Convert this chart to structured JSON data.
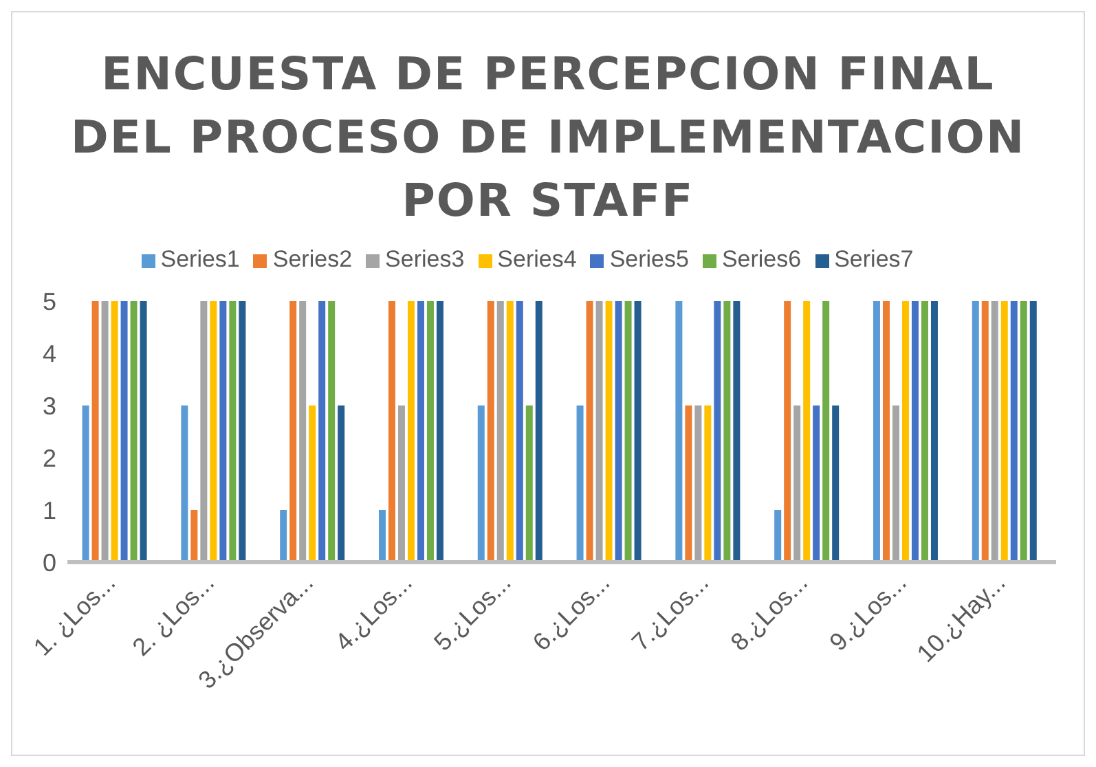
{
  "chart_data": {
    "type": "bar",
    "title": "ENCUESTA DE PERCEPCION FINAL DEL PROCESO DE IMPLEMENTACION POR STAFF",
    "categories": [
      "1. ¿Los...",
      "2. ¿Los...",
      "3.¿Observa...",
      "4.¿Los...",
      "5.¿Los...",
      "6.¿Los...",
      "7.¿Los...",
      "8.¿Los...",
      "9.¿Los...",
      "10.¿Hay..."
    ],
    "series": [
      {
        "name": "Series1",
        "color": "#5b9bd5",
        "values": [
          3,
          3,
          1,
          1,
          3,
          3,
          5,
          1,
          5,
          5
        ]
      },
      {
        "name": "Series2",
        "color": "#ed7d31",
        "values": [
          5,
          1,
          5,
          5,
          5,
          5,
          3,
          5,
          5,
          5
        ]
      },
      {
        "name": "Series3",
        "color": "#a5a5a5",
        "values": [
          5,
          5,
          5,
          3,
          5,
          5,
          3,
          3,
          3,
          5
        ]
      },
      {
        "name": "Series4",
        "color": "#ffc000",
        "values": [
          5,
          5,
          3,
          5,
          5,
          5,
          3,
          5,
          5,
          5
        ]
      },
      {
        "name": "Series5",
        "color": "#4472c4",
        "values": [
          5,
          5,
          5,
          5,
          5,
          5,
          5,
          3,
          5,
          5
        ]
      },
      {
        "name": "Series6",
        "color": "#70ad47",
        "values": [
          5,
          5,
          5,
          5,
          3,
          5,
          5,
          5,
          5,
          5
        ]
      },
      {
        "name": "Series7",
        "color": "#255e91",
        "values": [
          5,
          5,
          3,
          5,
          5,
          5,
          5,
          3,
          5,
          5
        ]
      }
    ],
    "ylim": [
      0,
      5
    ],
    "yticks": [
      0,
      1,
      2,
      3,
      4,
      5
    ],
    "grid": false,
    "legend": "top"
  }
}
